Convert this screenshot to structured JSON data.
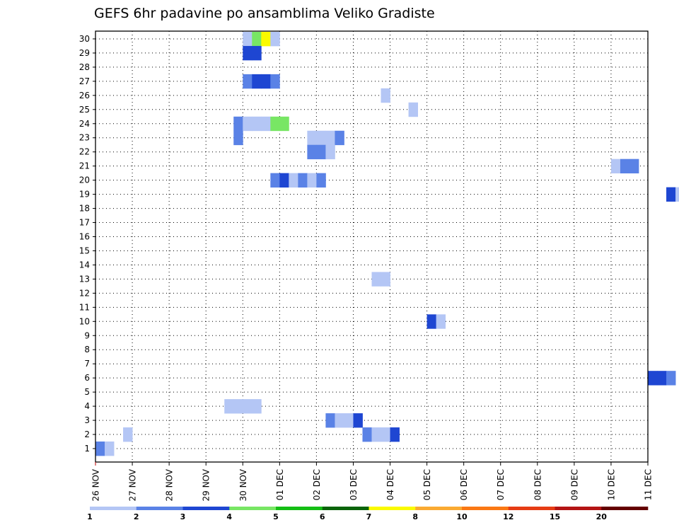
{
  "chart_data": {
    "type": "heatmap",
    "title": "GEFS 6hr padavine po ansamblima Veliko Gradiste",
    "xlabel": "",
    "ylabel": "",
    "x_ticks": [
      "26 NOV",
      "27 NOV",
      "28 NOV",
      "29 NOV",
      "30 NOV",
      "01 DEC",
      "02 DEC",
      "03 DEC",
      "04 DEC",
      "05 DEC",
      "06 DEC",
      "07 DEC",
      "08 DEC",
      "09 DEC",
      "10 DEC",
      "11 DEC"
    ],
    "y_ticks": [
      1,
      2,
      3,
      4,
      5,
      6,
      7,
      8,
      9,
      10,
      11,
      12,
      13,
      14,
      15,
      16,
      17,
      18,
      19,
      20,
      21,
      22,
      23,
      24,
      25,
      26,
      27,
      28,
      29,
      30
    ],
    "grid": true,
    "x_range_days": [
      0,
      15
    ],
    "y_range": [
      0,
      30
    ],
    "steps_per_day": 4,
    "colorbar": {
      "labels": [
        "1",
        "2",
        "3",
        "4",
        "5",
        "6",
        "7",
        "8",
        "10",
        "12",
        "15",
        "20"
      ],
      "colors": [
        "#b4c6f5",
        "#5a82e6",
        "#1e46d2",
        "#78e664",
        "#14be14",
        "#0a640a",
        "#fafa00",
        "#faaa32",
        "#fa7814",
        "#e63c14",
        "#b41414",
        "#640000"
      ]
    },
    "cells": [
      [
        0,
        30,
        1
      ],
      [
        1,
        30,
        4
      ],
      [
        2,
        30,
        7
      ],
      [
        3,
        30,
        1
      ],
      [
        4,
        30,
        2
      ],
      [
        1,
        29,
        3
      ],
      [
        2,
        29,
        3
      ],
      [
        0,
        28,
        2
      ],
      [
        1,
        28,
        3
      ],
      [
        2,
        28,
        3
      ],
      [
        3,
        28,
        2
      ],
      [
        4,
        28,
        1
      ],
      [
        0,
        27,
        1
      ],
      [
        1,
        27,
        1
      ],
      [
        2,
        27,
        1
      ],
      [
        0,
        26,
        1
      ],
      [
        1,
        26,
        2
      ],
      [
        2,
        26,
        1
      ],
      [
        3,
        26,
        1
      ],
      [
        4,
        26,
        2
      ],
      [
        5,
        26,
        3
      ],
      [
        0,
        25,
        1
      ],
      [
        1,
        25,
        2
      ],
      [
        2,
        25,
        2
      ],
      [
        3,
        25,
        1
      ],
      [
        4,
        25,
        1
      ],
      [
        0,
        24,
        1
      ],
      [
        1,
        24,
        4
      ],
      [
        2,
        24,
        4
      ],
      [
        3,
        24,
        2
      ],
      [
        4,
        24,
        1
      ],
      [
        5,
        24,
        1
      ],
      [
        0,
        23,
        1
      ],
      [
        1,
        23,
        2
      ],
      [
        2,
        23,
        2
      ],
      [
        3,
        23,
        2
      ],
      [
        4,
        23,
        1
      ],
      [
        1,
        22,
        1
      ],
      [
        2,
        22,
        2
      ],
      [
        3,
        22,
        2
      ],
      [
        0,
        21,
        2
      ],
      [
        1,
        21,
        3
      ],
      [
        2,
        21,
        1
      ],
      [
        0,
        20,
        2
      ],
      [
        1,
        20,
        1
      ],
      [
        2,
        20,
        2
      ],
      [
        3,
        20,
        3
      ],
      [
        4,
        20,
        1
      ],
      [
        5,
        20,
        2
      ],
      [
        0,
        19,
        1
      ],
      [
        1,
        19,
        2
      ],
      [
        2,
        19,
        2
      ],
      [
        3,
        19,
        3
      ],
      [
        4,
        19,
        1
      ],
      [
        0,
        18,
        2
      ],
      [
        1,
        18,
        2
      ],
      [
        2,
        18,
        1
      ],
      [
        3,
        18,
        1
      ],
      [
        0,
        17,
        1
      ],
      [
        1,
        17,
        3
      ],
      [
        2,
        17,
        3
      ],
      [
        3,
        17,
        2
      ],
      [
        0,
        16,
        2
      ],
      [
        1,
        16,
        3
      ],
      [
        2,
        16,
        3
      ],
      [
        3,
        16,
        3
      ],
      [
        0,
        15,
        2
      ],
      [
        1,
        15,
        3
      ],
      [
        2,
        15,
        3
      ],
      [
        3,
        15,
        3
      ],
      [
        4,
        15,
        1
      ],
      [
        0,
        14,
        1
      ],
      [
        1,
        14,
        2
      ],
      [
        2,
        14,
        1
      ],
      [
        3,
        14,
        1
      ],
      [
        4,
        14,
        2
      ],
      [
        0,
        13,
        1
      ],
      [
        1,
        13,
        2
      ],
      [
        0,
        12,
        2
      ],
      [
        1,
        12,
        2
      ],
      [
        0,
        11,
        3
      ],
      [
        1,
        11,
        1
      ],
      [
        2,
        11,
        2
      ],
      [
        0,
        10,
        1
      ],
      [
        1,
        10,
        1
      ],
      [
        0,
        9,
        1
      ],
      [
        1,
        9,
        2
      ],
      [
        2,
        9,
        2
      ],
      [
        3,
        9,
        2
      ],
      [
        0,
        8,
        2
      ],
      [
        1,
        8,
        2
      ],
      [
        2,
        8,
        3
      ],
      [
        0,
        7,
        2
      ],
      [
        1,
        7,
        3
      ],
      [
        2,
        7,
        3
      ],
      [
        3,
        7,
        2
      ],
      [
        0,
        6,
        1
      ],
      [
        1,
        6,
        2
      ],
      [
        2,
        6,
        1
      ],
      [
        0,
        5,
        1
      ],
      [
        1,
        5,
        1
      ],
      [
        0,
        4,
        1
      ],
      [
        1,
        4,
        2
      ],
      [
        2,
        4,
        1
      ],
      [
        3,
        4,
        1
      ],
      [
        0,
        3,
        3
      ],
      [
        1,
        3,
        2
      ],
      [
        2,
        3,
        1
      ],
      [
        3,
        3,
        1
      ],
      [
        0,
        2,
        3
      ],
      [
        1,
        2,
        3
      ],
      [
        2,
        2,
        2
      ],
      [
        3,
        2,
        1
      ],
      [
        0,
        1,
        2
      ],
      [
        1,
        1,
        1
      ]
    ]
  }
}
